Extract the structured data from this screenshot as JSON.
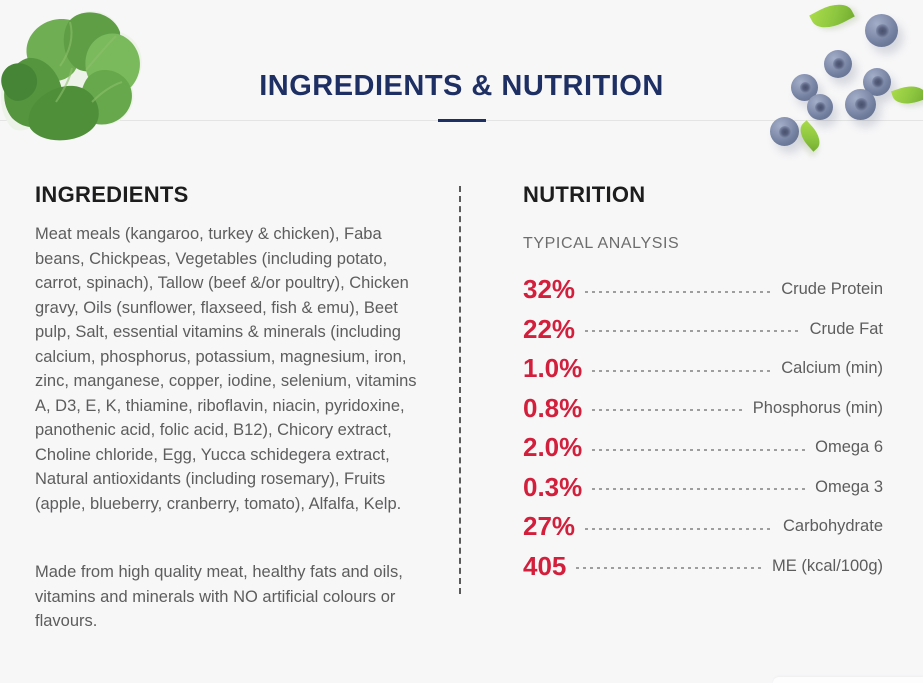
{
  "page": {
    "title": "INGREDIENTS & NUTRITION"
  },
  "ingredients": {
    "heading": "INGREDIENTS",
    "body": "Meat meals (kangaroo, turkey & chicken), Faba beans, Chickpeas, Vegetables (including potato, carrot, spinach), Tallow (beef &/or poultry), Chicken gravy, Oils (sunflower, flaxseed, fish & emu), Beet pulp, Salt, essential vitamins & minerals (including calcium, phosphorus, potassium, magnesium, iron, zinc, manganese, copper, iodine, selenium, vitamins A, D3, E, K, thiamine, riboflavin, niacin, pyridoxine, panothenic acid, folic acid, B12), Chicory extract, Choline chloride, Egg, Yucca schidegera extract, Natural antioxidants (including rosemary), Fruits (apple, blueberry, cranberry, tomato), Alfalfa, Kelp.",
    "note": "Made from high quality meat, healthy fats and oils, vitamins and minerals with NO artificial colours or flavours."
  },
  "nutrition": {
    "heading": "NUTRITION",
    "subheading": "TYPICAL ANALYSIS",
    "rows": [
      {
        "value": "32%",
        "label": "Crude Protein"
      },
      {
        "value": "22%",
        "label": "Crude Fat"
      },
      {
        "value": "1.0%",
        "label": "Calcium (min)"
      },
      {
        "value": "0.8%",
        "label": "Phosphorus (min)"
      },
      {
        "value": "2.0%",
        "label": "Omega 6"
      },
      {
        "value": "0.3%",
        "label": "Omega 3"
      },
      {
        "value": "27%",
        "label": "Carbohydrate"
      },
      {
        "value": "405",
        "label": "ME (kcal/100g)"
      }
    ]
  },
  "images": {
    "top_left": "spinach-leaves",
    "top_right": "blueberries-with-leaves"
  },
  "colors": {
    "accent_navy": "#1e2f63",
    "value_red": "#d21f3c",
    "heading_dark": "#1d1d1d",
    "body_gray": "#5d5d5d",
    "background": "#f7f7f8",
    "rule_gray": "#e4e4e4"
  }
}
